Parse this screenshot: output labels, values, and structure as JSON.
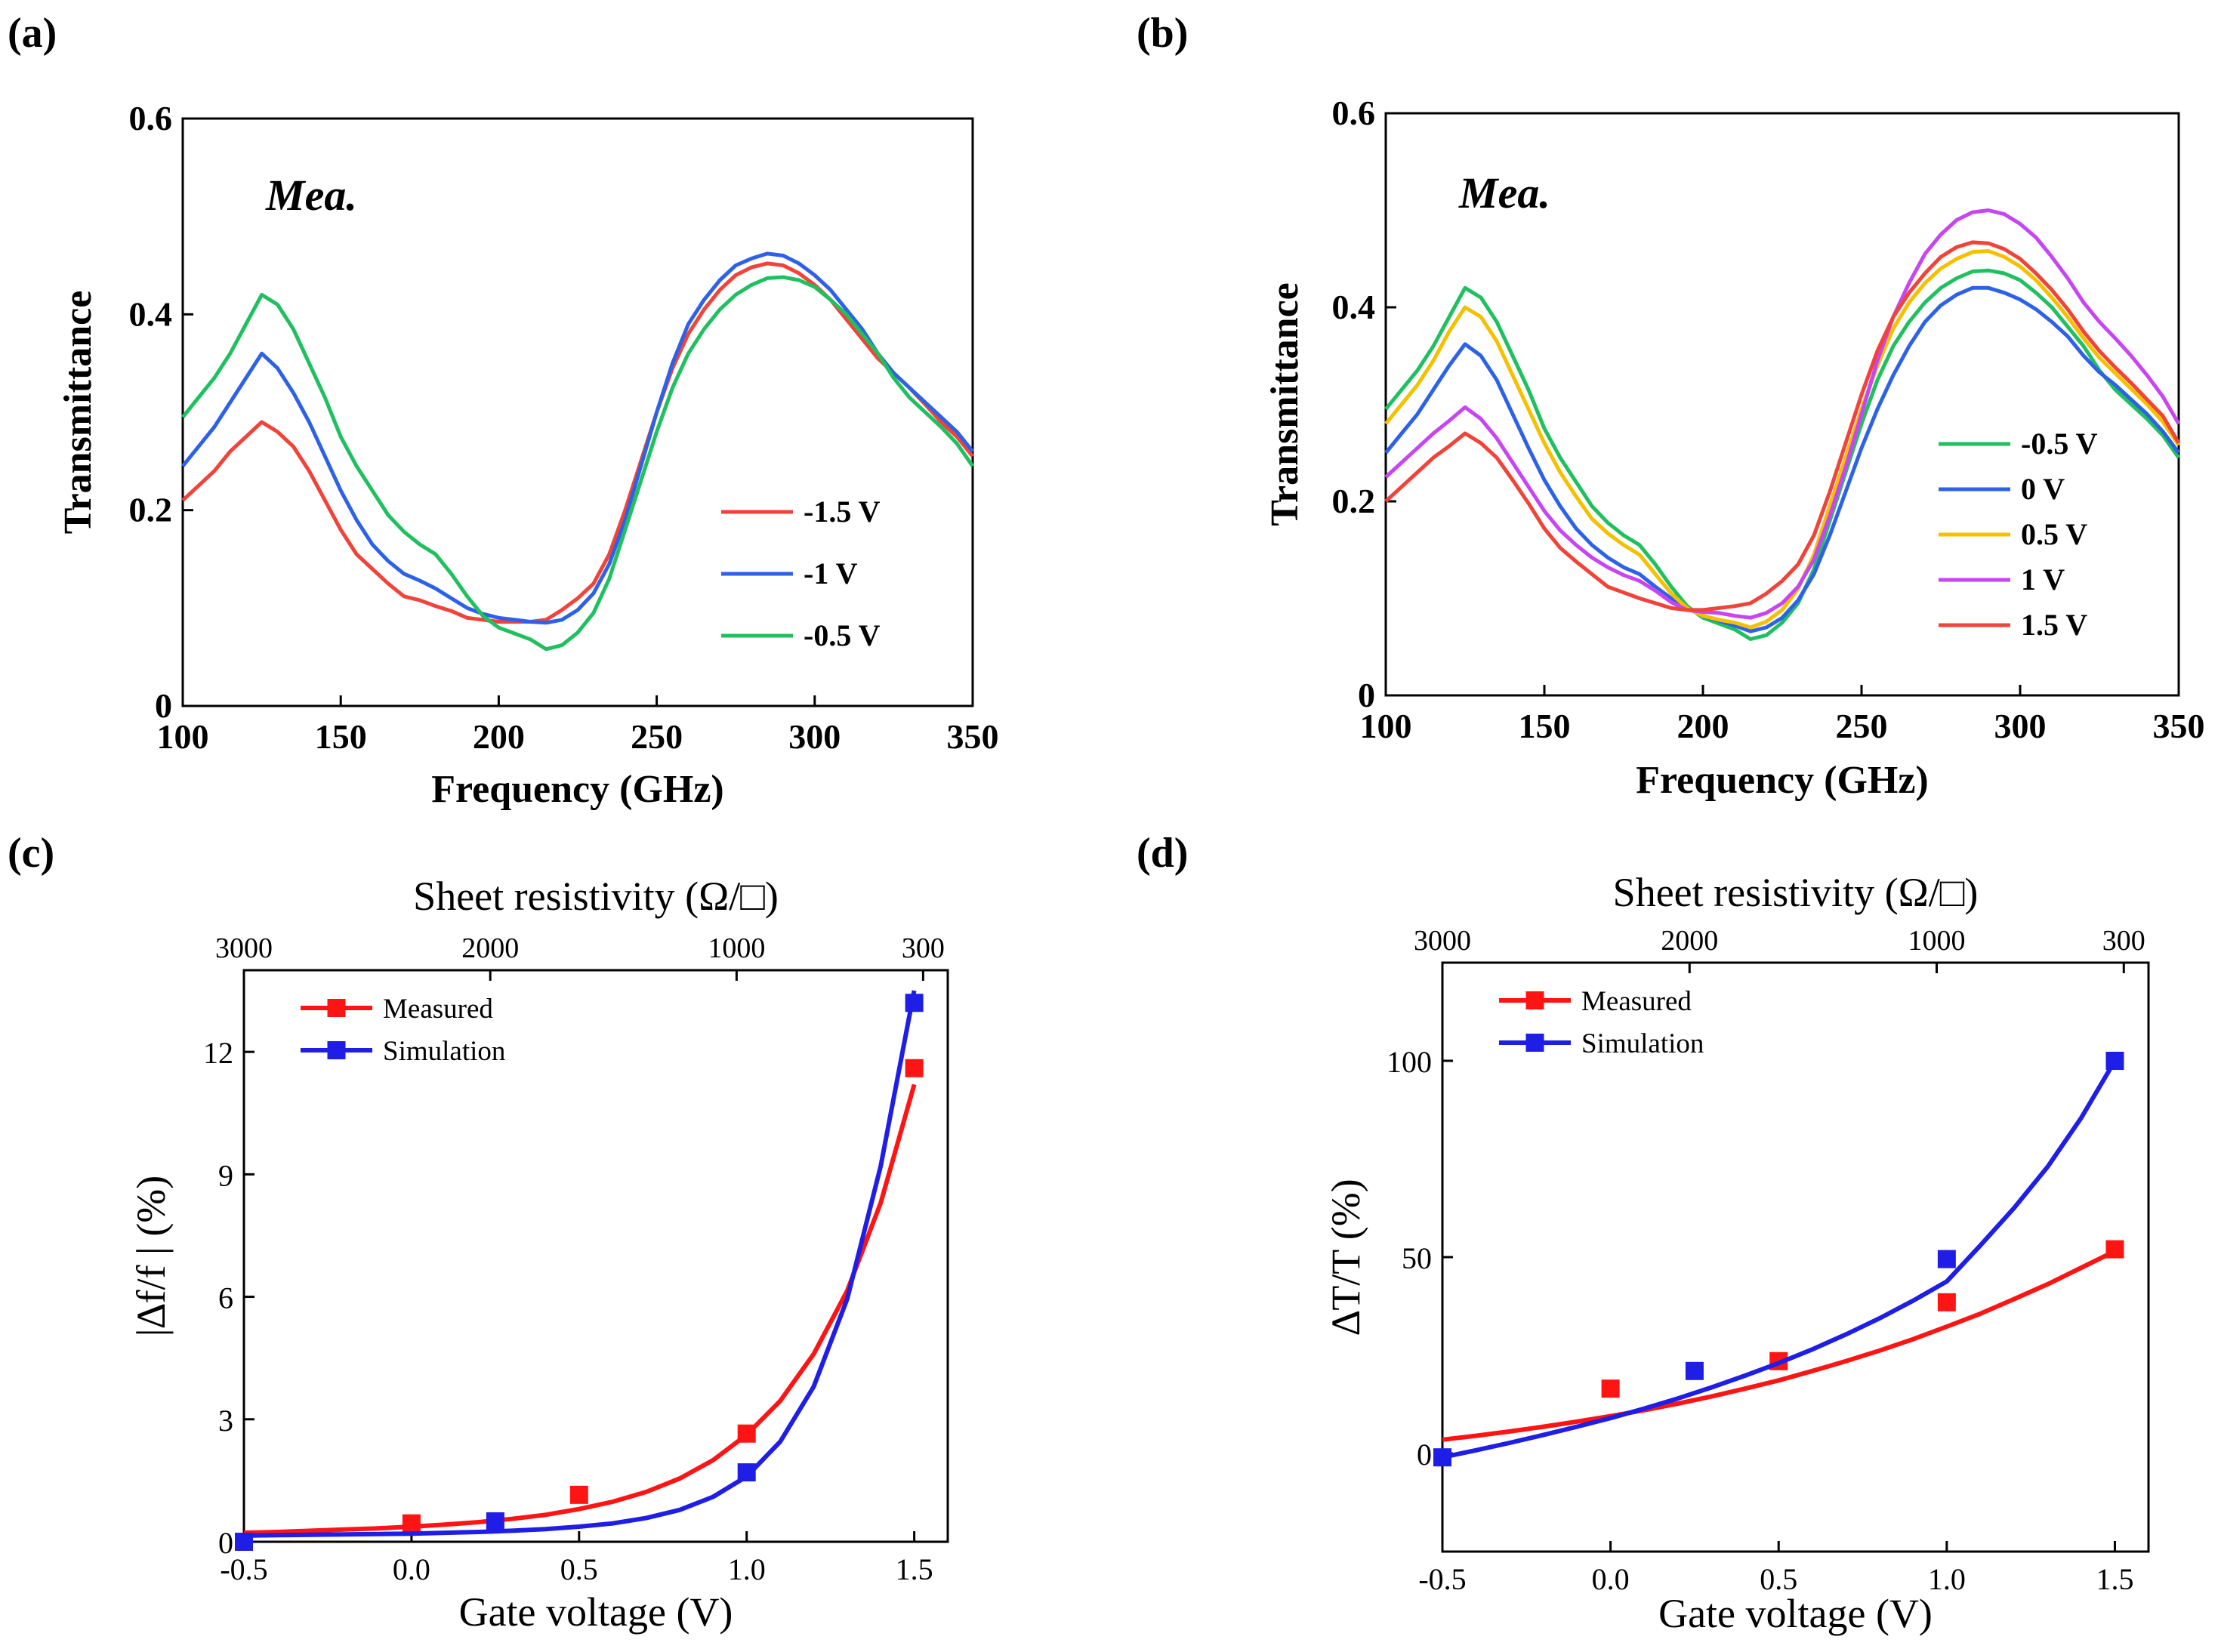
{
  "panel_labels": [
    "(a)",
    "(b)",
    "(c)",
    "(d)"
  ],
  "colors": {
    "red": "#f0433a",
    "blue": "#2e62e6",
    "green": "#20c060",
    "yellow": "#f5c000",
    "violet": "#c845f2",
    "meas_red": "#ff1414",
    "sim_blue": "#1e1ee6",
    "axis": "#000000"
  },
  "chart_data": [
    {
      "id": "a",
      "type": "line",
      "title": "",
      "annotation": "Mea.",
      "xlabel": "Frequency (GHz)",
      "ylabel": "Transmittance",
      "xlim": [
        100,
        350
      ],
      "ylim": [
        0,
        0.6
      ],
      "xticks": [
        100,
        150,
        200,
        250,
        300,
        350
      ],
      "xtick_labels": [
        "100",
        "150",
        "200",
        "250",
        "300",
        "350"
      ],
      "yticks": [
        0,
        0.2,
        0.4,
        0.6
      ],
      "ytick_labels": [
        "0",
        "0.2",
        "0.4",
        "0.6"
      ],
      "legend": "bottom-right",
      "x": [
        100,
        105,
        110,
        115,
        120,
        125,
        130,
        135,
        140,
        145,
        150,
        155,
        160,
        165,
        170,
        175,
        180,
        185,
        190,
        195,
        200,
        205,
        210,
        215,
        220,
        225,
        230,
        235,
        240,
        245,
        250,
        255,
        260,
        265,
        270,
        275,
        280,
        285,
        290,
        295,
        300,
        305,
        310,
        315,
        320,
        325,
        330,
        335,
        340,
        345,
        350
      ],
      "series": [
        {
          "name": "-1.5 V",
          "color": "#f0433a",
          "values": [
            0.21,
            0.225,
            0.24,
            0.26,
            0.275,
            0.29,
            0.28,
            0.265,
            0.24,
            0.21,
            0.18,
            0.155,
            0.14,
            0.125,
            0.112,
            0.108,
            0.102,
            0.097,
            0.09,
            0.088,
            0.086,
            0.086,
            0.086,
            0.088,
            0.098,
            0.11,
            0.125,
            0.155,
            0.2,
            0.25,
            0.3,
            0.345,
            0.38,
            0.405,
            0.425,
            0.44,
            0.448,
            0.452,
            0.45,
            0.442,
            0.43,
            0.415,
            0.395,
            0.375,
            0.355,
            0.34,
            0.325,
            0.308,
            0.29,
            0.275,
            0.255
          ]
        },
        {
          "name": "-1 V",
          "color": "#2e62e6",
          "values": [
            0.245,
            0.265,
            0.285,
            0.31,
            0.335,
            0.36,
            0.345,
            0.32,
            0.29,
            0.255,
            0.22,
            0.19,
            0.165,
            0.148,
            0.135,
            0.128,
            0.12,
            0.11,
            0.1,
            0.094,
            0.09,
            0.088,
            0.086,
            0.085,
            0.088,
            0.098,
            0.115,
            0.145,
            0.19,
            0.245,
            0.3,
            0.35,
            0.39,
            0.415,
            0.435,
            0.45,
            0.457,
            0.462,
            0.46,
            0.452,
            0.44,
            0.425,
            0.405,
            0.385,
            0.36,
            0.34,
            0.325,
            0.31,
            0.295,
            0.28,
            0.26
          ]
        },
        {
          "name": "-0.5 V",
          "color": "#20c060",
          "values": [
            0.295,
            0.315,
            0.335,
            0.36,
            0.39,
            0.42,
            0.41,
            0.385,
            0.35,
            0.315,
            0.275,
            0.245,
            0.22,
            0.195,
            0.178,
            0.165,
            0.155,
            0.135,
            0.112,
            0.092,
            0.08,
            0.074,
            0.068,
            0.058,
            0.062,
            0.075,
            0.095,
            0.13,
            0.18,
            0.23,
            0.28,
            0.325,
            0.36,
            0.385,
            0.405,
            0.42,
            0.43,
            0.437,
            0.438,
            0.435,
            0.428,
            0.415,
            0.4,
            0.38,
            0.36,
            0.335,
            0.315,
            0.3,
            0.285,
            0.268,
            0.245
          ]
        }
      ]
    },
    {
      "id": "b",
      "type": "line",
      "title": "",
      "annotation": "Mea.",
      "xlabel": "Frequency (GHz)",
      "ylabel": "Transmittance",
      "xlim": [
        100,
        350
      ],
      "ylim": [
        0,
        0.6
      ],
      "xticks": [
        100,
        150,
        200,
        250,
        300,
        350
      ],
      "xtick_labels": [
        "100",
        "150",
        "200",
        "250",
        "300",
        "350"
      ],
      "yticks": [
        0,
        0.2,
        0.4,
        0.6
      ],
      "ytick_labels": [
        "0",
        "0.2",
        "0.4",
        "0.6"
      ],
      "legend": "bottom-right",
      "x": [
        100,
        105,
        110,
        115,
        120,
        125,
        130,
        135,
        140,
        145,
        150,
        155,
        160,
        165,
        170,
        175,
        180,
        185,
        190,
        195,
        200,
        205,
        210,
        215,
        220,
        225,
        230,
        235,
        240,
        245,
        250,
        255,
        260,
        265,
        270,
        275,
        280,
        285,
        290,
        295,
        300,
        305,
        310,
        315,
        320,
        325,
        330,
        335,
        340,
        345,
        350
      ],
      "series": [
        {
          "name": "-0.5 V",
          "color": "#20c060",
          "values": [
            0.295,
            0.315,
            0.335,
            0.36,
            0.39,
            0.42,
            0.41,
            0.385,
            0.35,
            0.315,
            0.275,
            0.245,
            0.22,
            0.195,
            0.178,
            0.165,
            0.155,
            0.135,
            0.112,
            0.092,
            0.08,
            0.074,
            0.068,
            0.058,
            0.062,
            0.075,
            0.095,
            0.13,
            0.18,
            0.23,
            0.28,
            0.325,
            0.36,
            0.385,
            0.405,
            0.42,
            0.43,
            0.437,
            0.438,
            0.435,
            0.428,
            0.415,
            0.4,
            0.38,
            0.36,
            0.335,
            0.315,
            0.3,
            0.285,
            0.268,
            0.245
          ]
        },
        {
          "name": "0 V",
          "color": "#2e62e6",
          "values": [
            0.25,
            0.27,
            0.29,
            0.315,
            0.34,
            0.362,
            0.35,
            0.325,
            0.29,
            0.255,
            0.222,
            0.195,
            0.172,
            0.155,
            0.142,
            0.132,
            0.125,
            0.112,
            0.1,
            0.09,
            0.082,
            0.077,
            0.072,
            0.066,
            0.07,
            0.08,
            0.098,
            0.125,
            0.165,
            0.21,
            0.255,
            0.295,
            0.33,
            0.36,
            0.385,
            0.402,
            0.413,
            0.42,
            0.42,
            0.415,
            0.408,
            0.398,
            0.385,
            0.37,
            0.35,
            0.333,
            0.32,
            0.305,
            0.29,
            0.272,
            0.25
          ]
        },
        {
          "name": "0.5 V",
          "color": "#f5c000",
          "values": [
            0.28,
            0.3,
            0.32,
            0.345,
            0.375,
            0.4,
            0.39,
            0.365,
            0.33,
            0.295,
            0.26,
            0.23,
            0.205,
            0.182,
            0.167,
            0.155,
            0.145,
            0.125,
            0.105,
            0.09,
            0.082,
            0.078,
            0.075,
            0.07,
            0.076,
            0.088,
            0.11,
            0.145,
            0.195,
            0.245,
            0.295,
            0.34,
            0.378,
            0.405,
            0.425,
            0.44,
            0.45,
            0.457,
            0.458,
            0.452,
            0.442,
            0.428,
            0.41,
            0.39,
            0.368,
            0.348,
            0.332,
            0.316,
            0.3,
            0.282,
            0.258
          ]
        },
        {
          "name": "1 V",
          "color": "#c845f2",
          "values": [
            0.225,
            0.24,
            0.255,
            0.27,
            0.283,
            0.297,
            0.285,
            0.265,
            0.24,
            0.215,
            0.19,
            0.17,
            0.155,
            0.142,
            0.132,
            0.124,
            0.118,
            0.108,
            0.096,
            0.088,
            0.086,
            0.085,
            0.082,
            0.08,
            0.085,
            0.095,
            0.112,
            0.14,
            0.185,
            0.235,
            0.29,
            0.345,
            0.39,
            0.425,
            0.455,
            0.475,
            0.49,
            0.498,
            0.5,
            0.496,
            0.486,
            0.472,
            0.452,
            0.43,
            0.405,
            0.385,
            0.368,
            0.35,
            0.33,
            0.308,
            0.28
          ]
        },
        {
          "name": "1.5 V",
          "color": "#f0433a",
          "values": [
            0.2,
            0.215,
            0.23,
            0.245,
            0.257,
            0.27,
            0.26,
            0.245,
            0.222,
            0.198,
            0.172,
            0.152,
            0.138,
            0.125,
            0.112,
            0.106,
            0.1,
            0.095,
            0.09,
            0.088,
            0.088,
            0.09,
            0.092,
            0.095,
            0.105,
            0.118,
            0.135,
            0.165,
            0.21,
            0.26,
            0.31,
            0.355,
            0.39,
            0.415,
            0.435,
            0.452,
            0.462,
            0.467,
            0.466,
            0.46,
            0.45,
            0.435,
            0.418,
            0.398,
            0.375,
            0.355,
            0.338,
            0.322,
            0.305,
            0.288,
            0.26
          ]
        }
      ]
    },
    {
      "id": "c",
      "type": "scatter",
      "title": "",
      "xlabel": "Gate voltage (V)",
      "ylabel": "|∆f/f | (%)",
      "top_xlabel": "Sheet resistivity (Ω/□)",
      "top_xtick_labels": [
        "3000",
        "2000",
        "1000",
        "300"
      ],
      "xlim": [
        -0.5,
        1.6
      ],
      "ylim": [
        0,
        14
      ],
      "xticks": [
        -0.5,
        0.0,
        0.5,
        1.0,
        1.5
      ],
      "xtick_labels": [
        "-0.5",
        "0.0",
        "0.5",
        "1.0",
        "1.5"
      ],
      "yticks": [
        0,
        3,
        6,
        9,
        12
      ],
      "ytick_labels": [
        "0",
        "3",
        "6",
        "9",
        "12"
      ],
      "legend": "top-left",
      "series": [
        {
          "name": "Measured",
          "color": "#ff1414",
          "x": [
            -0.5,
            0.0,
            0.5,
            1.0,
            1.5
          ],
          "y": [
            0.0,
            0.45,
            1.15,
            2.65,
            11.6
          ],
          "fit_x": [
            -0.5,
            -0.4,
            -0.3,
            -0.2,
            -0.1,
            0.0,
            0.1,
            0.2,
            0.3,
            0.4,
            0.5,
            0.6,
            0.7,
            0.8,
            0.9,
            1.0,
            1.1,
            1.2,
            1.3,
            1.4,
            1.5
          ],
          "fit_y": [
            0.22,
            0.24,
            0.27,
            0.3,
            0.33,
            0.37,
            0.42,
            0.48,
            0.56,
            0.66,
            0.8,
            0.98,
            1.22,
            1.55,
            2.0,
            2.62,
            3.45,
            4.6,
            6.15,
            8.3,
            11.2
          ]
        },
        {
          "name": "Simulation",
          "color": "#1e1ee6",
          "x": [
            -0.5,
            0.25,
            1.0,
            1.5
          ],
          "y": [
            0.0,
            0.5,
            1.7,
            13.2
          ],
          "fit_x": [
            -0.5,
            -0.4,
            -0.3,
            -0.2,
            -0.1,
            0.0,
            0.1,
            0.2,
            0.3,
            0.4,
            0.5,
            0.6,
            0.7,
            0.8,
            0.9,
            1.0,
            1.1,
            1.2,
            1.3,
            1.4,
            1.5
          ],
          "fit_y": [
            0.15,
            0.16,
            0.17,
            0.18,
            0.19,
            0.2,
            0.22,
            0.24,
            0.27,
            0.31,
            0.37,
            0.45,
            0.58,
            0.78,
            1.1,
            1.6,
            2.45,
            3.8,
            5.95,
            9.2,
            13.5
          ]
        }
      ]
    },
    {
      "id": "d",
      "type": "scatter",
      "title": "",
      "xlabel": "Gate voltage (V)",
      "ylabel": "∆T/T (%)",
      "top_xlabel": "Sheet resistivity (Ω/□)",
      "top_xtick_labels": [
        "3000",
        "2000",
        "1000",
        "300"
      ],
      "xlim": [
        -0.5,
        1.6
      ],
      "ylim": [
        -25,
        125
      ],
      "xticks": [
        -0.5,
        0.0,
        0.5,
        1.0,
        1.5
      ],
      "xtick_labels": [
        "-0.5",
        "0.0",
        "0.5",
        "1.0",
        "1.5"
      ],
      "yticks": [
        0,
        50,
        100
      ],
      "ytick_labels": [
        "0",
        "50",
        "100"
      ],
      "legend": "top-left",
      "series": [
        {
          "name": "Measured",
          "color": "#ff1414",
          "x": [
            0.0,
            0.5,
            1.0,
            1.5
          ],
          "y": [
            16.5,
            23.5,
            38.5,
            52.0
          ],
          "fit_x": [
            -0.5,
            -0.4,
            -0.3,
            -0.2,
            -0.1,
            0.0,
            0.1,
            0.2,
            0.3,
            0.4,
            0.5,
            0.6,
            0.7,
            0.8,
            0.9,
            1.0,
            1.1,
            1.2,
            1.3,
            1.4,
            1.5
          ],
          "fit_y": [
            3.5,
            4.5,
            5.6,
            6.8,
            8.1,
            9.5,
            11.0,
            12.7,
            14.5,
            16.5,
            18.6,
            21.0,
            23.5,
            26.2,
            29.1,
            32.3,
            35.6,
            39.3,
            43.1,
            47.3,
            51.5
          ]
        },
        {
          "name": "Simulation",
          "color": "#1e1ee6",
          "x": [
            -0.5,
            0.25,
            1.0,
            1.5
          ],
          "y": [
            -1.0,
            21.0,
            49.5,
            100.0
          ],
          "fit_x": [
            -0.5,
            -0.4,
            -0.3,
            -0.2,
            -0.1,
            0.0,
            0.1,
            0.2,
            0.3,
            0.4,
            0.5,
            0.6,
            0.7,
            0.8,
            0.9,
            1.0,
            1.1,
            1.2,
            1.3,
            1.4,
            1.5
          ],
          "fit_y": [
            -1.0,
            0.8,
            2.7,
            4.7,
            6.8,
            9.0,
            11.4,
            14.0,
            16.8,
            19.8,
            23.0,
            26.5,
            30.3,
            34.4,
            38.9,
            43.8,
            53.0,
            62.5,
            73.0,
            85.5,
            100.0
          ]
        }
      ]
    }
  ]
}
